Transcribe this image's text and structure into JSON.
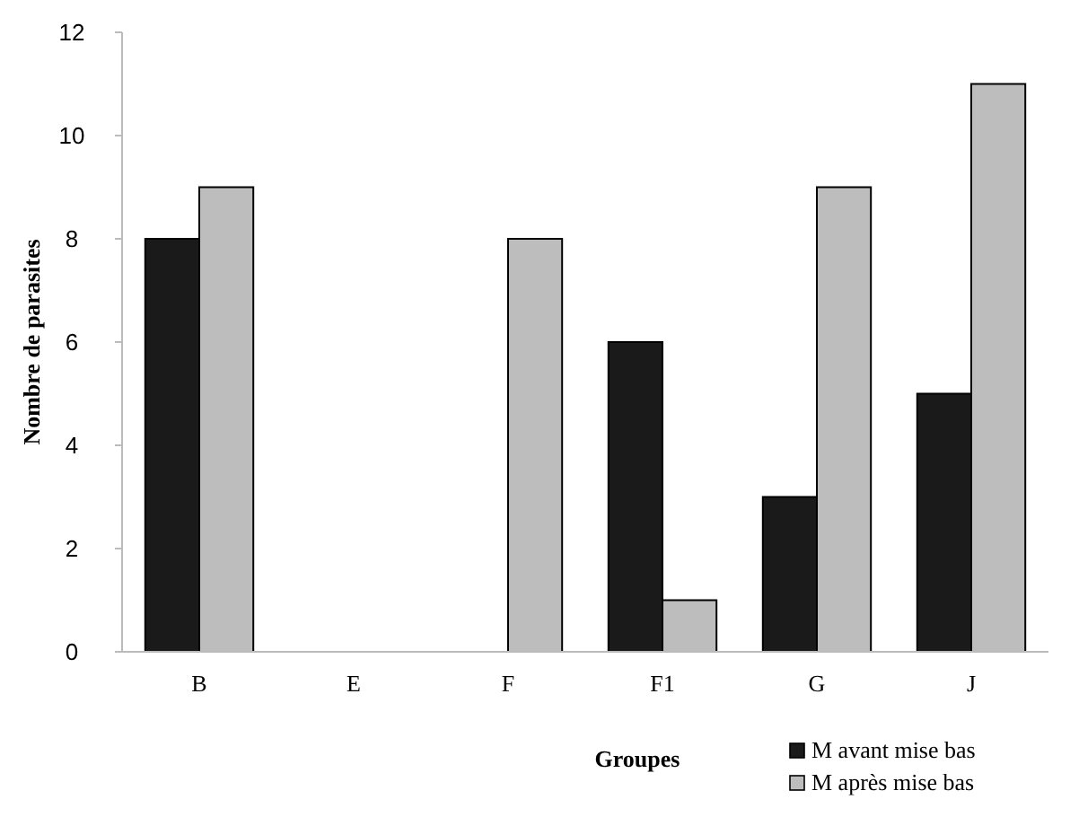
{
  "chart_data": {
    "type": "bar",
    "xlabel": "Groupes",
    "ylabel": "Nombre de parasites",
    "categories": [
      "B",
      "E",
      "F",
      "F1",
      "G",
      "J"
    ],
    "series": [
      {
        "name": "M avant mise bas",
        "color": "#1a1a1a",
        "values": [
          8,
          0,
          0,
          6,
          3,
          5
        ]
      },
      {
        "name": "M après mise bas",
        "color": "#bdbdbd",
        "values": [
          9,
          0,
          8,
          1,
          9,
          11
        ]
      }
    ],
    "ylim": [
      0,
      12
    ],
    "yticks": [
      0,
      2,
      4,
      6,
      8,
      10,
      12
    ],
    "grid": false,
    "legend": "bottom right"
  }
}
